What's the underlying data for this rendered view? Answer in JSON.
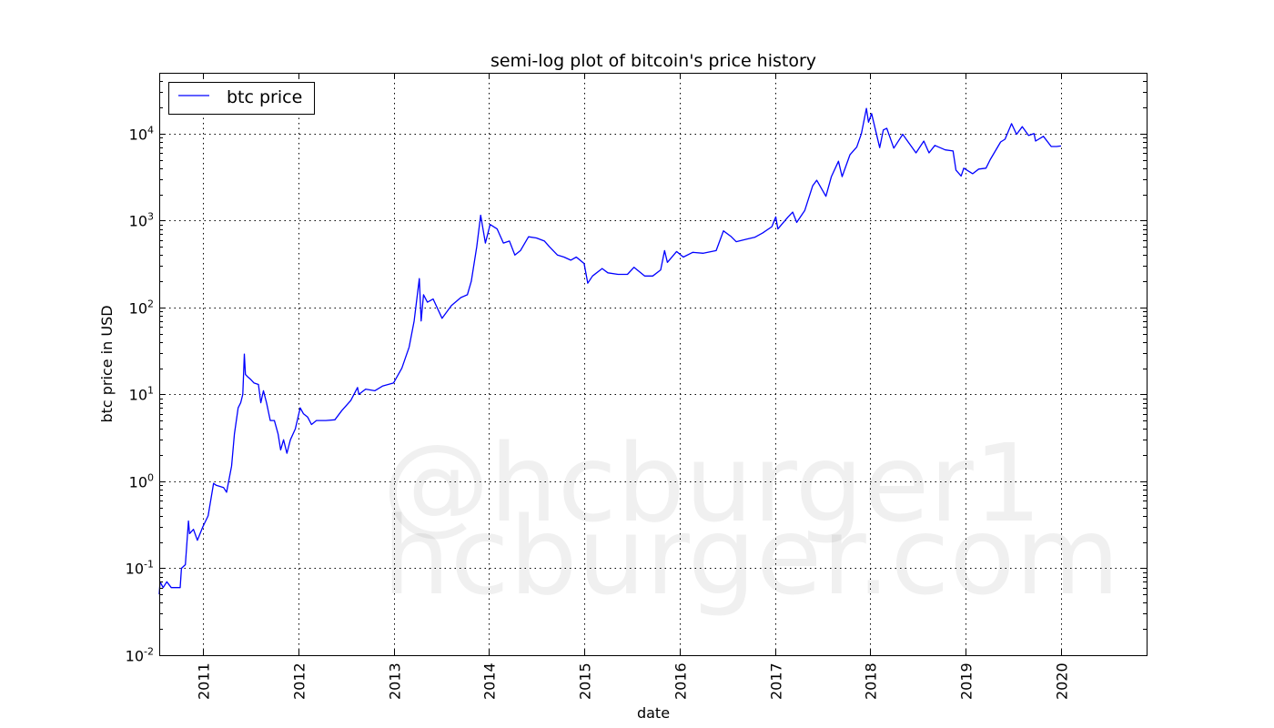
{
  "chart_data": {
    "type": "line",
    "title": "semi-log plot of bitcoin's price history",
    "xlabel": "date",
    "ylabel": "btc price in USD",
    "yscale": "log",
    "ylim": [
      0.01,
      50000
    ],
    "xlim": [
      "2010-07-17",
      "2020-11-25"
    ],
    "x_ticks": [
      "2011",
      "2012",
      "2013",
      "2014",
      "2015",
      "2016",
      "2017",
      "2018",
      "2019",
      "2020"
    ],
    "y_ticks": [
      {
        "base": "10",
        "exp": "-2"
      },
      {
        "base": "10",
        "exp": "-1"
      },
      {
        "base": "10",
        "exp": "0"
      },
      {
        "base": "10",
        "exp": "1"
      },
      {
        "base": "10",
        "exp": "2"
      },
      {
        "base": "10",
        "exp": "3"
      },
      {
        "base": "10",
        "exp": "4"
      }
    ],
    "grid": true,
    "legend_position": "top-left",
    "series": [
      {
        "name": "btc price",
        "color": "#0000ff",
        "points": [
          [
            "2010-07-17",
            0.05
          ],
          [
            "2010-07-20",
            0.07
          ],
          [
            "2010-08-01",
            0.06
          ],
          [
            "2010-08-15",
            0.07
          ],
          [
            "2010-09-01",
            0.06
          ],
          [
            "2010-10-05",
            0.06
          ],
          [
            "2010-10-10",
            0.1
          ],
          [
            "2010-10-25",
            0.11
          ],
          [
            "2010-11-06",
            0.35
          ],
          [
            "2010-11-10",
            0.25
          ],
          [
            "2010-11-25",
            0.28
          ],
          [
            "2010-12-10",
            0.21
          ],
          [
            "2010-12-31",
            0.3
          ],
          [
            "2011-01-20",
            0.4
          ],
          [
            "2011-02-10",
            0.95
          ],
          [
            "2011-02-20",
            0.9
          ],
          [
            "2011-03-20",
            0.85
          ],
          [
            "2011-04-01",
            0.75
          ],
          [
            "2011-04-20",
            1.5
          ],
          [
            "2011-05-01",
            3.5
          ],
          [
            "2011-05-15",
            7
          ],
          [
            "2011-05-25",
            8
          ],
          [
            "2011-06-02",
            10
          ],
          [
            "2011-06-08",
            29
          ],
          [
            "2011-06-12",
            17
          ],
          [
            "2011-06-20",
            16
          ],
          [
            "2011-07-01",
            15
          ],
          [
            "2011-07-15",
            13.5
          ],
          [
            "2011-08-01",
            13
          ],
          [
            "2011-08-10",
            8
          ],
          [
            "2011-08-20",
            11
          ],
          [
            "2011-09-01",
            8
          ],
          [
            "2011-09-15",
            5
          ],
          [
            "2011-10-01",
            5
          ],
          [
            "2011-10-15",
            3.5
          ],
          [
            "2011-10-25",
            2.3
          ],
          [
            "2011-11-05",
            3
          ],
          [
            "2011-11-18",
            2.1
          ],
          [
            "2011-12-01",
            3
          ],
          [
            "2011-12-20",
            4
          ],
          [
            "2012-01-08",
            7
          ],
          [
            "2012-01-20",
            6
          ],
          [
            "2012-02-05",
            5.5
          ],
          [
            "2012-02-20",
            4.5
          ],
          [
            "2012-03-10",
            5
          ],
          [
            "2012-04-15",
            5
          ],
          [
            "2012-05-20",
            5.1
          ],
          [
            "2012-06-15",
            6.5
          ],
          [
            "2012-07-20",
            8.5
          ],
          [
            "2012-08-15",
            12
          ],
          [
            "2012-08-20",
            10
          ],
          [
            "2012-09-15",
            11.5
          ],
          [
            "2012-10-20",
            11
          ],
          [
            "2012-11-20",
            12.5
          ],
          [
            "2012-12-31",
            13.5
          ],
          [
            "2013-02-01",
            20
          ],
          [
            "2013-03-01",
            35
          ],
          [
            "2013-03-20",
            70
          ],
          [
            "2013-04-09",
            215
          ],
          [
            "2013-04-16",
            70
          ],
          [
            "2013-04-25",
            140
          ],
          [
            "2013-05-10",
            115
          ],
          [
            "2013-06-01",
            125
          ],
          [
            "2013-07-05",
            75
          ],
          [
            "2013-08-10",
            105
          ],
          [
            "2013-09-15",
            130
          ],
          [
            "2013-10-10",
            140
          ],
          [
            "2013-10-25",
            200
          ],
          [
            "2013-11-15",
            500
          ],
          [
            "2013-11-30",
            1150
          ],
          [
            "2013-12-18",
            550
          ],
          [
            "2014-01-05",
            900
          ],
          [
            "2014-02-01",
            800
          ],
          [
            "2014-02-25",
            550
          ],
          [
            "2014-03-20",
            580
          ],
          [
            "2014-04-10",
            400
          ],
          [
            "2014-05-01",
            450
          ],
          [
            "2014-06-01",
            650
          ],
          [
            "2014-07-01",
            630
          ],
          [
            "2014-08-01",
            580
          ],
          [
            "2014-08-20",
            500
          ],
          [
            "2014-09-20",
            400
          ],
          [
            "2014-10-15",
            380
          ],
          [
            "2014-11-10",
            350
          ],
          [
            "2014-12-01",
            380
          ],
          [
            "2014-12-31",
            320
          ],
          [
            "2015-01-14",
            190
          ],
          [
            "2015-02-01",
            230
          ],
          [
            "2015-03-10",
            280
          ],
          [
            "2015-04-01",
            250
          ],
          [
            "2015-05-10",
            240
          ],
          [
            "2015-06-15",
            240
          ],
          [
            "2015-07-10",
            290
          ],
          [
            "2015-08-20",
            230
          ],
          [
            "2015-09-20",
            230
          ],
          [
            "2015-10-20",
            270
          ],
          [
            "2015-11-04",
            450
          ],
          [
            "2015-11-15",
            330
          ],
          [
            "2015-12-20",
            440
          ],
          [
            "2016-01-15",
            380
          ],
          [
            "2016-02-20",
            430
          ],
          [
            "2016-04-01",
            420
          ],
          [
            "2016-05-20",
            450
          ],
          [
            "2016-06-17",
            760
          ],
          [
            "2016-07-15",
            660
          ],
          [
            "2016-08-05",
            570
          ],
          [
            "2016-09-15",
            610
          ],
          [
            "2016-10-15",
            640
          ],
          [
            "2016-11-15",
            720
          ],
          [
            "2016-12-20",
            850
          ],
          [
            "2017-01-04",
            1100
          ],
          [
            "2017-01-12",
            800
          ],
          [
            "2017-02-20",
            1100
          ],
          [
            "2017-03-10",
            1250
          ],
          [
            "2017-03-25",
            950
          ],
          [
            "2017-04-25",
            1300
          ],
          [
            "2017-05-25",
            2500
          ],
          [
            "2017-06-10",
            2900
          ],
          [
            "2017-07-15",
            1900
          ],
          [
            "2017-08-05",
            3200
          ],
          [
            "2017-09-01",
            4800
          ],
          [
            "2017-09-15",
            3200
          ],
          [
            "2017-10-15",
            5700
          ],
          [
            "2017-11-10",
            7000
          ],
          [
            "2017-11-28",
            10000
          ],
          [
            "2017-12-17",
            19500
          ],
          [
            "2017-12-25",
            13500
          ],
          [
            "2018-01-06",
            17000
          ],
          [
            "2018-02-06",
            6900
          ],
          [
            "2018-02-20",
            11000
          ],
          [
            "2018-03-05",
            11500
          ],
          [
            "2018-04-01",
            6800
          ],
          [
            "2018-05-05",
            9800
          ],
          [
            "2018-06-25",
            6000
          ],
          [
            "2018-07-25",
            8200
          ],
          [
            "2018-08-14",
            6000
          ],
          [
            "2018-09-05",
            7300
          ],
          [
            "2018-10-15",
            6500
          ],
          [
            "2018-11-14",
            6300
          ],
          [
            "2018-11-25",
            3800
          ],
          [
            "2018-12-15",
            3250
          ],
          [
            "2018-12-25",
            4000
          ],
          [
            "2019-01-28",
            3450
          ],
          [
            "2019-02-20",
            3900
          ],
          [
            "2019-03-20",
            4000
          ],
          [
            "2019-04-05",
            5000
          ],
          [
            "2019-05-15",
            8000
          ],
          [
            "2019-06-01",
            8600
          ],
          [
            "2019-06-26",
            13000
          ],
          [
            "2019-07-15",
            9800
          ],
          [
            "2019-08-06",
            12000
          ],
          [
            "2019-08-30",
            9500
          ],
          [
            "2019-09-20",
            10000
          ],
          [
            "2019-09-26",
            8200
          ],
          [
            "2019-10-26",
            9300
          ],
          [
            "2019-11-25",
            7100
          ],
          [
            "2019-12-15",
            7100
          ],
          [
            "2020-01-01",
            7200
          ]
        ]
      }
    ]
  },
  "watermark": {
    "line1": "@hcburger1",
    "line2": "hcburger.com"
  }
}
